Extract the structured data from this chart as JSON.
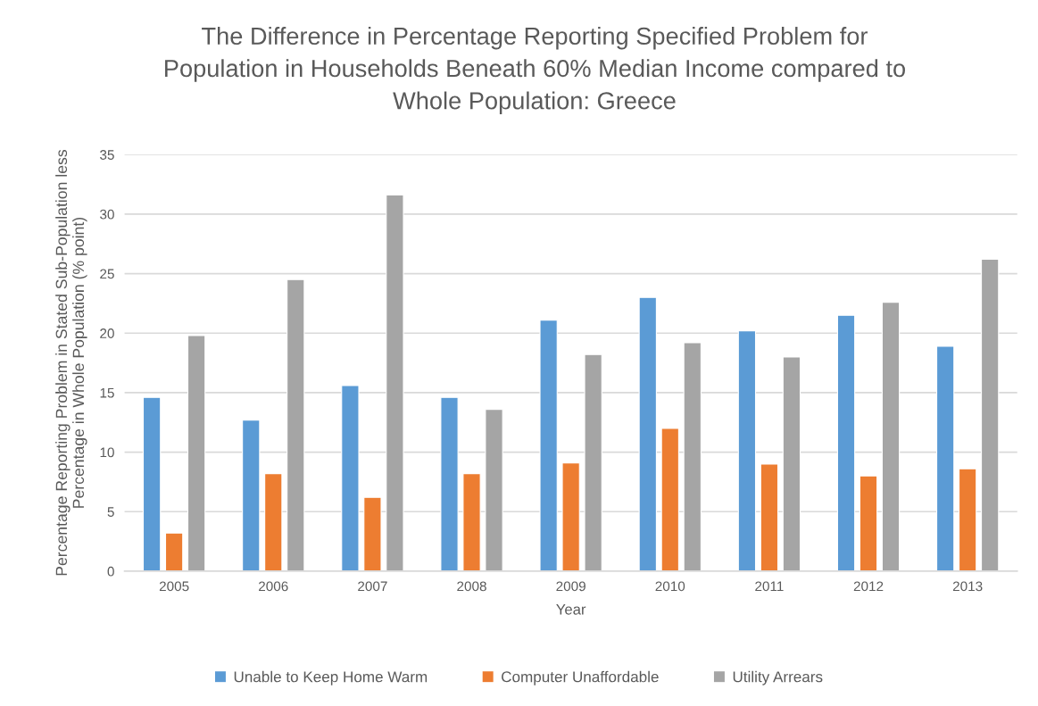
{
  "chart_data": {
    "type": "bar",
    "title": "The Difference in Percentage Reporting Specified Problem for\nPopulation in Households Beneath 60% Median Income compared to\nWhole Population: Greece",
    "xlabel": "Year",
    "ylabel": "Percentage Reporting Problem in Stated Sub-Population less\nPercentage in Whole Population (% point)",
    "categories": [
      "2005",
      "2006",
      "2007",
      "2008",
      "2009",
      "2010",
      "2011",
      "2012",
      "2013"
    ],
    "series": [
      {
        "name": "Unable to Keep Home Warm",
        "color": "#5b9bd5",
        "values": [
          14.6,
          12.7,
          15.6,
          14.6,
          21.1,
          23.0,
          20.2,
          21.5,
          18.9
        ]
      },
      {
        "name": "Computer Unaffordable",
        "color": "#ed7d31",
        "values": [
          3.2,
          8.2,
          6.2,
          8.2,
          9.1,
          12.0,
          9.0,
          8.0,
          8.6
        ]
      },
      {
        "name": "Utility Arrears",
        "color": "#a5a5a5",
        "values": [
          19.8,
          24.5,
          31.6,
          13.6,
          18.2,
          19.2,
          18.0,
          22.6,
          26.2
        ]
      }
    ],
    "ylim": [
      0,
      35
    ],
    "yticks": [
      0,
      5,
      10,
      15,
      20,
      25,
      30,
      35
    ],
    "grid": "y",
    "legend": "bottom"
  }
}
